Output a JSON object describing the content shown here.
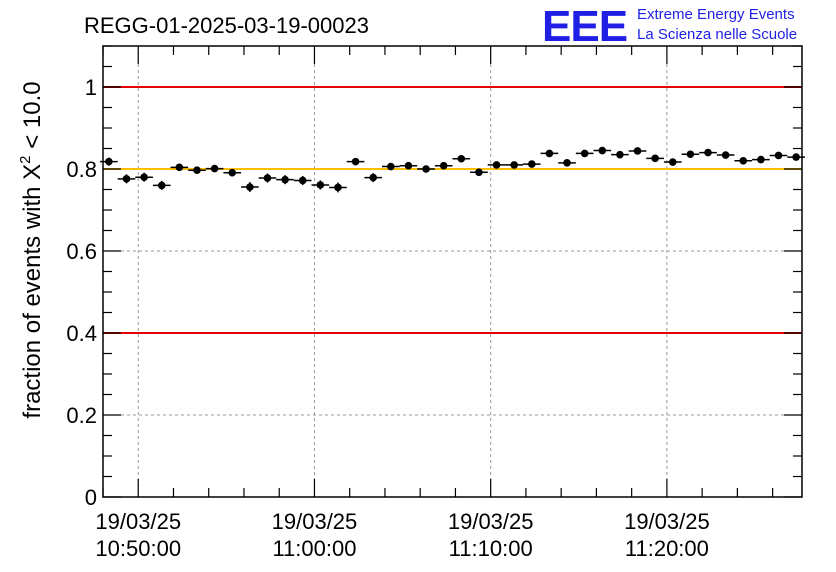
{
  "logo": {
    "mark": "EEE",
    "line1": "Extreme Energy Events",
    "line2": "La Scienza nelle Scuole",
    "color": "#1f1fe6"
  },
  "chart_data": {
    "type": "scatter",
    "title": "REGG-01-2025-03-19-00023",
    "ylabel": "fraction of events with χ² < 10.0",
    "ylabel_parts": {
      "base": "fraction of events with ",
      "symbol": "X",
      "sup": "2",
      "tail": " < 10.0"
    },
    "xlabel": "",
    "ylim": [
      0,
      1.1
    ],
    "yticks": [
      0,
      0.2,
      0.4,
      0.6,
      0.8,
      1
    ],
    "ytick_labels": [
      "0",
      "0.2",
      "0.4",
      "0.6",
      "0.8",
      "1"
    ],
    "xlim": [
      "19/03/25 10:48:00",
      "19/03/25 11:27:40"
    ],
    "xticks": [
      "19/03/25 10:50:00",
      "19/03/25 11:00:00",
      "19/03/25 11:10:00",
      "19/03/25 11:20:00"
    ],
    "xtick_labels": [
      [
        "19/03/25",
        "10:50:00"
      ],
      [
        "19/03/25",
        "11:00:00"
      ],
      [
        "19/03/25",
        "11:10:00"
      ],
      [
        "19/03/25",
        "11:20:00"
      ]
    ],
    "grid": true,
    "reference_lines": [
      {
        "y": 1.0,
        "color": "#e60000"
      },
      {
        "y": 0.8,
        "color": "#ffbf00"
      },
      {
        "y": 0.4,
        "color": "#e60000"
      }
    ],
    "series": [
      {
        "marker": "filled-circle",
        "color": "#000000",
        "x": [
          "10:48:20",
          "10:49:20",
          "10:50:20",
          "10:51:20",
          "10:52:20",
          "10:53:20",
          "10:54:20",
          "10:55:20",
          "10:56:20",
          "10:57:20",
          "10:58:20",
          "10:59:20",
          "11:00:20",
          "11:01:20",
          "11:02:20",
          "11:03:20",
          "11:04:20",
          "11:05:20",
          "11:06:20",
          "11:07:20",
          "11:08:20",
          "11:09:20",
          "11:10:20",
          "11:11:20",
          "11:12:20",
          "11:13:20",
          "11:14:20",
          "11:15:20",
          "11:16:20",
          "11:17:20",
          "11:18:20",
          "11:19:20",
          "11:20:20",
          "11:21:20",
          "11:22:20",
          "11:23:20",
          "11:24:20",
          "11:25:20",
          "11:26:20",
          "11:27:20"
        ],
        "y": [
          0.818,
          0.776,
          0.78,
          0.76,
          0.804,
          0.797,
          0.801,
          0.791,
          0.756,
          0.778,
          0.774,
          0.772,
          0.761,
          0.755,
          0.818,
          0.779,
          0.806,
          0.808,
          0.8,
          0.808,
          0.825,
          0.792,
          0.81,
          0.81,
          0.812,
          0.838,
          0.815,
          0.838,
          0.845,
          0.835,
          0.844,
          0.826,
          0.817,
          0.836,
          0.84,
          0.834,
          0.82,
          0.823,
          0.833,
          0.829
        ],
        "yerr": [
          0.01,
          0.011,
          0.011,
          0.011,
          0.008,
          0.008,
          0.008,
          0.009,
          0.012,
          0.011,
          0.011,
          0.011,
          0.011,
          0.012,
          0.009,
          0.011,
          0.007,
          0.007,
          0.008,
          0.007,
          0.007,
          0.008,
          0.007,
          0.007,
          0.007,
          0.007,
          0.008,
          0.007,
          0.006,
          0.007,
          0.006,
          0.007,
          0.007,
          0.006,
          0.006,
          0.007,
          0.007,
          0.007,
          0.006,
          0.007
        ]
      }
    ]
  }
}
